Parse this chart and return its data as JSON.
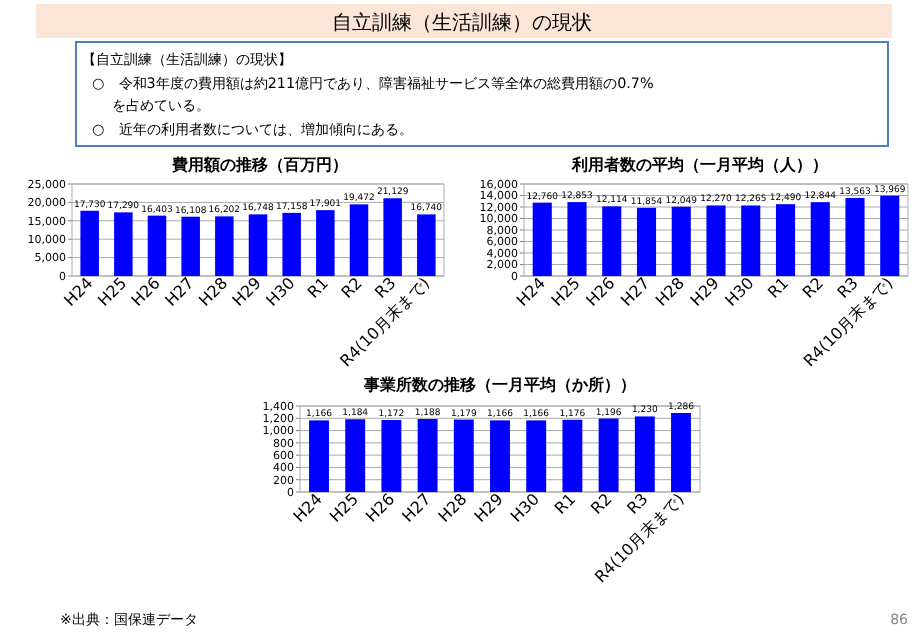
{
  "chart_data": [
    {
      "type": "other",
      "title": "自立訓練（生活訓練）の現状",
      "subtitle": "【自立訓練（生活訓練）の現状】",
      "annotations": [
        "○　令和3年度の費用額は約211億円であり、障害福祉サービス等全体の総費用額の0.7%",
        "を占めている。",
        "○　近年の利用者数については、増加傾向にある。",
        "※出典：国保連データ",
        "86"
      ]
    },
    {
      "type": "bar",
      "title": "費用額の推移（百万円）",
      "categories": [
        "H24",
        "H25",
        "H26",
        "H27",
        "H28",
        "H29",
        "H30",
        "R1",
        "R2",
        "R3",
        "R4(10月末まで)"
      ],
      "series": [
        {
          "color": "#0000ff",
          "values": [
            17730,
            17290,
            16403,
            16108,
            16202,
            16748,
            17158,
            17901,
            19472,
            21129,
            16740
          ],
          "value_labels": [
            "17,730",
            "17,290",
            "16,403",
            "16,108",
            "16,202",
            "16,748",
            "17,158",
            "17,901",
            "19,472",
            "21,129",
            "16,740"
          ]
        }
      ],
      "ylim": [
        0,
        25000
      ],
      "yticks": [
        {
          "value": 0,
          "label": "0"
        },
        {
          "value": 5000,
          "label": "5,000"
        },
        {
          "value": 10000,
          "label": "10,000"
        },
        {
          "value": 15000,
          "label": "15,000"
        },
        {
          "value": 20000,
          "label": "20,000"
        },
        {
          "value": 25000,
          "label": "25,000"
        }
      ],
      "grid": "y"
    },
    {
      "type": "bar",
      "title": "利用者数の平均（一月平均（人））",
      "categories": [
        "H24",
        "H25",
        "H26",
        "H27",
        "H28",
        "H29",
        "H30",
        "R1",
        "R2",
        "R3",
        "R4(10月末まで)"
      ],
      "series": [
        {
          "color": "#0000ff",
          "values": [
            12760,
            12853,
            12114,
            11854,
            12049,
            12270,
            12265,
            12490,
            12844,
            13563,
            13969
          ],
          "value_labels": [
            "12,760",
            "12,853",
            "12,114",
            "11,854",
            "12,049",
            "12,270",
            "12,265",
            "12,490",
            "12,844",
            "13,563",
            "13,969"
          ]
        }
      ],
      "ylim": [
        0,
        16000
      ],
      "yticks": [
        {
          "value": 0,
          "label": "0"
        },
        {
          "value": 2000,
          "label": "2,000"
        },
        {
          "value": 4000,
          "label": "4,000"
        },
        {
          "value": 6000,
          "label": "6,000"
        },
        {
          "value": 8000,
          "label": "8,000"
        },
        {
          "value": 10000,
          "label": "10,000"
        },
        {
          "value": 12000,
          "label": "12,000"
        },
        {
          "value": 14000,
          "label": "14,000"
        },
        {
          "value": 16000,
          "label": "16,000"
        }
      ],
      "grid": "y"
    },
    {
      "type": "bar",
      "title": "事業所数の推移（一月平均（か所））",
      "categories": [
        "H24",
        "H25",
        "H26",
        "H27",
        "H28",
        "H29",
        "H30",
        "R1",
        "R2",
        "R3",
        "R4(10月末まで)"
      ],
      "series": [
        {
          "color": "#0000ff",
          "values": [
            1166,
            1184,
            1172,
            1188,
            1179,
            1166,
            1166,
            1176,
            1196,
            1230,
            1286
          ],
          "value_labels": [
            "1,166",
            "1,184",
            "1,172",
            "1,188",
            "1,179",
            "1,166",
            "1,166",
            "1,176",
            "1,196",
            "1,230",
            "1,286"
          ]
        }
      ],
      "ylim": [
        0,
        1400
      ],
      "yticks": [
        {
          "value": 0,
          "label": "0"
        },
        {
          "value": 200,
          "label": "200"
        },
        {
          "value": 400,
          "label": "400"
        },
        {
          "value": 600,
          "label": "600"
        },
        {
          "value": 800,
          "label": "800"
        },
        {
          "value": 1000,
          "label": "1,000"
        },
        {
          "value": 1200,
          "label": "1,200"
        },
        {
          "value": 1400,
          "label": "1,400"
        }
      ],
      "grid": "y"
    }
  ]
}
